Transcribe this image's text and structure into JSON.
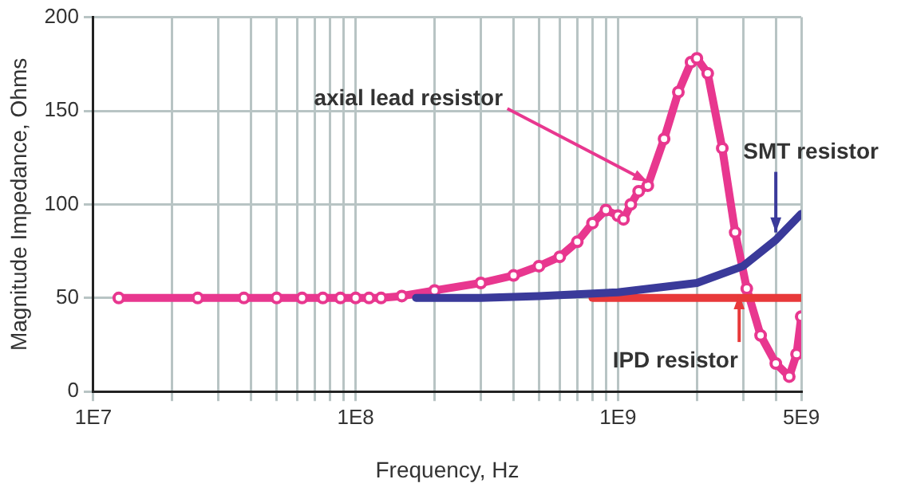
{
  "chart_data": {
    "type": "line",
    "xlabel": "Frequency, Hz",
    "ylabel": "Magnitude Impedance, Ohms",
    "log": "x",
    "grid": true,
    "legend": false,
    "xlim": [
      10000000,
      5000000000
    ],
    "ylim": [
      0,
      200
    ],
    "yticks": [
      0,
      50,
      100,
      150,
      200
    ],
    "xticks": [
      {
        "value": 10000000,
        "label": "1E7"
      },
      {
        "value": 20000000,
        "label": null
      },
      {
        "value": 30000000,
        "label": null
      },
      {
        "value": 40000000,
        "label": null
      },
      {
        "value": 50000000,
        "label": null
      },
      {
        "value": 60000000,
        "label": null
      },
      {
        "value": 70000000,
        "label": null
      },
      {
        "value": 80000000,
        "label": null
      },
      {
        "value": 90000000,
        "label": null
      },
      {
        "value": 100000000,
        "label": "1E8"
      },
      {
        "value": 200000000,
        "label": null
      },
      {
        "value": 300000000,
        "label": null
      },
      {
        "value": 400000000,
        "label": null
      },
      {
        "value": 500000000,
        "label": null
      },
      {
        "value": 600000000,
        "label": null
      },
      {
        "value": 700000000,
        "label": null
      },
      {
        "value": 800000000,
        "label": null
      },
      {
        "value": 900000000,
        "label": null
      },
      {
        "value": 1000000000,
        "label": "1E9"
      },
      {
        "value": 2000000000,
        "label": null
      },
      {
        "value": 3000000000,
        "label": null
      },
      {
        "value": 4000000000,
        "label": null
      },
      {
        "value": 5000000000,
        "label": "5E9"
      }
    ],
    "series": [
      {
        "color": "#3a3a9a",
        "marker": "none",
        "x": [
          170000000,
          300000000,
          500000000,
          1000000000,
          2000000000,
          3000000000,
          4000000000,
          5000000000
        ],
        "values": [
          50,
          50,
          51,
          53,
          58,
          67,
          81,
          95
        ]
      },
      {
        "color": "#e8393a",
        "marker": "none",
        "x": [
          800000000,
          5000000000
        ],
        "values": [
          50,
          50
        ]
      },
      {
        "color": "#e8378f",
        "marker": "circle",
        "x": [
          12500000,
          25000000,
          37500000,
          50000000,
          62500000,
          75000000,
          87500000,
          100000000,
          112500000,
          125000000,
          150000000,
          200000000,
          300000000,
          400000000,
          500000000,
          600000000,
          700000000,
          800000000,
          900000000,
          1000000000,
          1050000000,
          1120000000,
          1200000000,
          1300000000,
          1500000000,
          1700000000,
          1900000000,
          2000000000,
          2200000000,
          2500000000,
          2800000000,
          3100000000,
          3500000000,
          4000000000,
          4500000000,
          4800000000,
          5000000000
        ],
        "values": [
          50,
          50,
          50,
          50,
          50,
          50,
          50,
          50,
          50,
          50,
          51,
          54,
          58,
          62,
          67,
          72,
          80,
          90,
          97,
          94,
          92,
          100,
          107,
          110,
          135,
          160,
          176,
          178,
          170,
          130,
          85,
          55,
          30,
          15,
          8,
          20,
          40
        ]
      }
    ],
    "annotations": [
      {
        "text": "axial lead resistor",
        "x": 1300000000,
        "y": 112
      },
      {
        "text": "SMT resistor",
        "x": 4000000000,
        "y": 85
      },
      {
        "text": "IPD resistor",
        "x": 2900000000,
        "y": 52
      }
    ]
  }
}
